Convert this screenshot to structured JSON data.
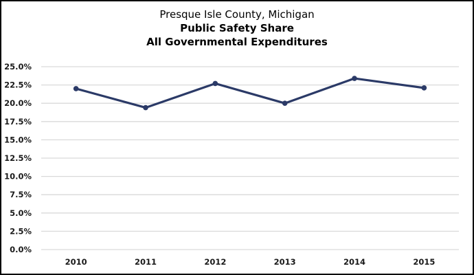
{
  "chart_data": {
    "type": "line",
    "title": "Presque Isle County, Michigan",
    "subtitle_lines": [
      "Public Safety Share",
      "All Governmental Expenditures"
    ],
    "xlabel": "",
    "ylabel": "",
    "categories": [
      "2010",
      "2011",
      "2012",
      "2013",
      "2014",
      "2015"
    ],
    "series": [
      {
        "name": "Public Safety Share",
        "values": [
          22.0,
          19.4,
          22.7,
          20.0,
          23.4,
          22.1
        ],
        "color": "#2b3a67"
      }
    ],
    "ylim": [
      0,
      25
    ],
    "yticks": [
      0,
      2.5,
      5,
      7.5,
      10,
      12.5,
      15,
      17.5,
      20,
      22.5,
      25
    ],
    "ytick_labels": [
      "0.0%",
      "2.5%",
      "5.0%",
      "7.5%",
      "10.0%",
      "12.5%",
      "15.0%",
      "17.5%",
      "20.0%",
      "22.5%",
      "25.0%"
    ],
    "grid": true,
    "gridline_color": "#d9d9d9",
    "legend": "none"
  }
}
